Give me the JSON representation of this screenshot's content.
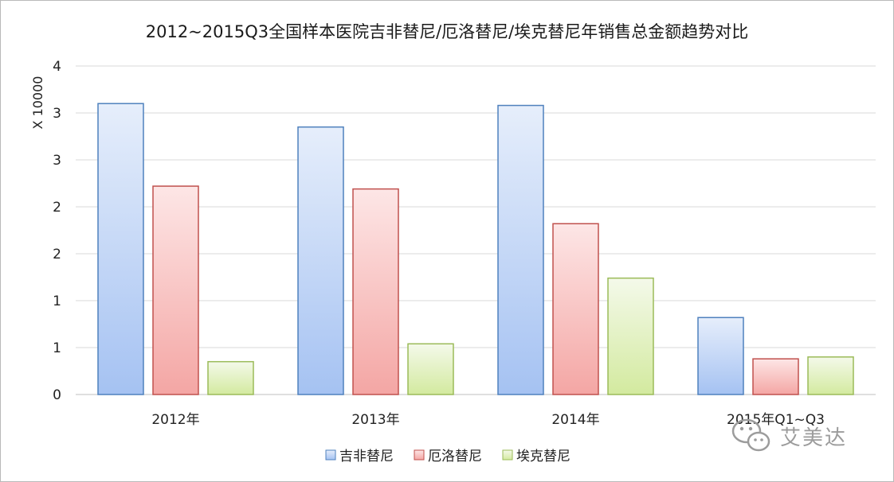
{
  "chart_data": {
    "type": "bar",
    "title": "2012~2015Q3全国样本医院吉非替尼/厄洛替尼/埃克替尼年销售总金额趋势对比",
    "ylabel": "X 10000",
    "xlabel": "",
    "categories": [
      "2012年",
      "2013年",
      "2014年",
      "2015年Q1~Q3"
    ],
    "ylim": [
      0,
      3.5
    ],
    "yticks": [
      0,
      0.5,
      1,
      1.5,
      2,
      2.5,
      3,
      3.5
    ],
    "ytick_labels": [
      "0",
      "1",
      "1",
      "2",
      "2",
      "3",
      "3",
      "4"
    ],
    "grid": true,
    "legend_position": "bottom",
    "series": [
      {
        "name": "吉非替尼",
        "values": [
          3.1,
          2.85,
          3.08,
          0.82
        ],
        "color": "#4f81bd",
        "fill_top": "#e6eefb",
        "fill_bottom": "#a5c2f2"
      },
      {
        "name": "厄洛替尼",
        "values": [
          2.22,
          2.19,
          1.82,
          0.38
        ],
        "color": "#c0504d",
        "fill_top": "#fde6e6",
        "fill_bottom": "#f4a6a4"
      },
      {
        "name": "埃克替尼",
        "values": [
          0.35,
          0.54,
          1.24,
          0.4
        ],
        "color": "#9bbb59",
        "fill_top": "#f4f9ea",
        "fill_bottom": "#d3ea9f"
      }
    ]
  },
  "watermark": {
    "text": "艾美达",
    "icon": "wechat-icon"
  }
}
